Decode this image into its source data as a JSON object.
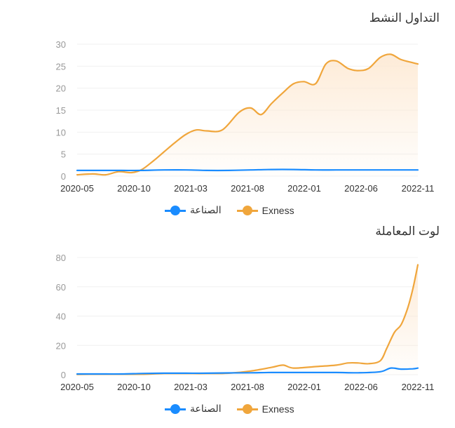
{
  "colors": {
    "industry": "#1a8cff",
    "exness": "#f0a63c",
    "area": "#fde9d3"
  },
  "chart_data": [
    {
      "type": "line",
      "title": "التداول النشط",
      "x_ticks": [
        "2020-05",
        "2020-10",
        "2021-03",
        "2021-08",
        "2022-01",
        "2022-06",
        "2022-11"
      ],
      "ylim": [
        0,
        30
      ],
      "y_ticks": [
        0,
        5,
        10,
        15,
        20,
        25,
        30
      ],
      "grid": true,
      "legend_position": "bottom",
      "series": [
        {
          "name": "الصناعة",
          "color": "#1a8cff",
          "area": false,
          "x": [
            2020.33,
            2020.5,
            2020.67,
            2020.83,
            2021.0,
            2021.17,
            2021.33,
            2021.5,
            2021.67,
            2021.83,
            2022.0,
            2022.17,
            2022.33,
            2022.5,
            2022.67,
            2022.83,
            2022.96
          ],
          "y": [
            1.3,
            1.3,
            1.3,
            1.3,
            1.4,
            1.4,
            1.3,
            1.3,
            1.4,
            1.5,
            1.5,
            1.4,
            1.4,
            1.4,
            1.4,
            1.4,
            1.4
          ]
        },
        {
          "name": "Exness",
          "color": "#f0a63c",
          "area": true,
          "x": [
            2020.33,
            2020.45,
            2020.55,
            2020.65,
            2020.75,
            2020.83,
            2020.92,
            2021.0,
            2021.08,
            2021.17,
            2021.25,
            2021.33,
            2021.45,
            2021.58,
            2021.67,
            2021.75,
            2021.83,
            2021.92,
            2022.0,
            2022.08,
            2022.17,
            2022.25,
            2022.33,
            2022.42,
            2022.5,
            2022.58,
            2022.67,
            2022.75,
            2022.83,
            2022.92,
            2022.96
          ],
          "y": [
            0.3,
            0.5,
            0.3,
            1.0,
            0.8,
            1.5,
            3.5,
            5.5,
            7.5,
            9.5,
            10.5,
            10.3,
            10.5,
            14.5,
            15.5,
            14.0,
            16.5,
            19.0,
            21.0,
            21.5,
            21.0,
            25.5,
            26.2,
            24.5,
            24.0,
            24.5,
            27.0,
            27.7,
            26.5,
            25.8,
            25.5
          ]
        }
      ]
    },
    {
      "type": "line",
      "title": "لوت المعاملة",
      "x_ticks": [
        "2020-05",
        "2020-10",
        "2021-03",
        "2021-08",
        "2022-01",
        "2022-06",
        "2022-11"
      ],
      "ylim": [
        0,
        80
      ],
      "y_ticks": [
        0,
        20,
        40,
        60,
        80
      ],
      "grid": true,
      "legend_position": "bottom",
      "series": [
        {
          "name": "الصناعة",
          "color": "#1a8cff",
          "area": false,
          "x": [
            2020.33,
            2020.5,
            2020.67,
            2020.83,
            2021.0,
            2021.17,
            2021.33,
            2021.5,
            2021.67,
            2021.83,
            2022.0,
            2022.17,
            2022.33,
            2022.5,
            2022.67,
            2022.75,
            2022.83,
            2022.92,
            2022.96
          ],
          "y": [
            0.5,
            0.5,
            0.5,
            0.8,
            1.0,
            1.0,
            1.0,
            1.2,
            1.3,
            1.5,
            1.5,
            1.5,
            1.5,
            1.3,
            2.0,
            4.5,
            3.8,
            4.0,
            4.5
          ]
        },
        {
          "name": "Exness",
          "color": "#f0a63c",
          "area": true,
          "x": [
            2020.33,
            2020.5,
            2020.67,
            2020.83,
            2021.0,
            2021.17,
            2021.33,
            2021.5,
            2021.67,
            2021.83,
            2021.92,
            2022.0,
            2022.17,
            2022.33,
            2022.42,
            2022.5,
            2022.58,
            2022.67,
            2022.72,
            2022.78,
            2022.83,
            2022.88,
            2022.92,
            2022.96
          ],
          "y": [
            0.2,
            0.3,
            0.3,
            0.3,
            0.8,
            0.8,
            0.8,
            1.0,
            2.5,
            5.0,
            6.5,
            4.5,
            5.5,
            6.5,
            8.0,
            8.0,
            7.5,
            9.5,
            18.0,
            29.0,
            34.0,
            45.0,
            58.0,
            75.0
          ]
        }
      ]
    }
  ]
}
